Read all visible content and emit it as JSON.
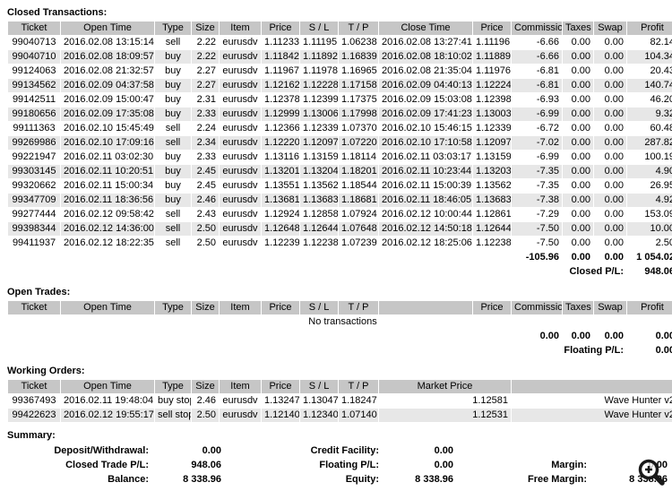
{
  "closed": {
    "title": "Closed Transactions:",
    "headers": [
      "Ticket",
      "Open Time",
      "Type",
      "Size",
      "Item",
      "Price",
      "S / L",
      "T / P",
      "Close Time",
      "Price",
      "Commission",
      "Taxes",
      "Swap",
      "Profit"
    ],
    "rows": [
      [
        "99040713",
        "2016.02.08 13:15:14",
        "sell",
        "2.22",
        "eurusdv",
        "1.11233",
        "1.11195",
        "1.06238",
        "2016.02.08 13:27:41",
        "1.11196",
        "-6.66",
        "0.00",
        "0.00",
        "82.14"
      ],
      [
        "99040710",
        "2016.02.08 18:09:57",
        "buy",
        "2.22",
        "eurusdv",
        "1.11842",
        "1.11892",
        "1.16839",
        "2016.02.08 18:10:02",
        "1.11889",
        "-6.66",
        "0.00",
        "0.00",
        "104.34"
      ],
      [
        "99124063",
        "2016.02.08 21:32:57",
        "buy",
        "2.27",
        "eurusdv",
        "1.11967",
        "1.11978",
        "1.16965",
        "2016.02.08 21:35:04",
        "1.11976",
        "-6.81",
        "0.00",
        "0.00",
        "20.43"
      ],
      [
        "99134562",
        "2016.02.09 04:37:58",
        "buy",
        "2.27",
        "eurusdv",
        "1.12162",
        "1.12228",
        "1.17158",
        "2016.02.09 04:40:13",
        "1.12224",
        "-6.81",
        "0.00",
        "0.00",
        "140.74"
      ],
      [
        "99142511",
        "2016.02.09 15:00:47",
        "buy",
        "2.31",
        "eurusdv",
        "1.12378",
        "1.12399",
        "1.17375",
        "2016.02.09 15:03:08",
        "1.12398",
        "-6.93",
        "0.00",
        "0.00",
        "46.20"
      ],
      [
        "99180656",
        "2016.02.09 17:35:08",
        "buy",
        "2.33",
        "eurusdv",
        "1.12999",
        "1.13006",
        "1.17998",
        "2016.02.09 17:41:23",
        "1.13003",
        "-6.99",
        "0.00",
        "0.00",
        "9.32"
      ],
      [
        "99111363",
        "2016.02.10 15:45:49",
        "sell",
        "2.24",
        "eurusdv",
        "1.12366",
        "1.12339",
        "1.07370",
        "2016.02.10 15:46:15",
        "1.12339",
        "-6.72",
        "0.00",
        "0.00",
        "60.48"
      ],
      [
        "99269986",
        "2016.02.10 17:09:16",
        "sell",
        "2.34",
        "eurusdv",
        "1.12220",
        "1.12097",
        "1.07220",
        "2016.02.10 17:10:58",
        "1.12097",
        "-7.02",
        "0.00",
        "0.00",
        "287.82"
      ],
      [
        "99221947",
        "2016.02.11 03:02:30",
        "buy",
        "2.33",
        "eurusdv",
        "1.13116",
        "1.13159",
        "1.18114",
        "2016.02.11 03:03:17",
        "1.13159",
        "-6.99",
        "0.00",
        "0.00",
        "100.19"
      ],
      [
        "99303145",
        "2016.02.11 10:20:51",
        "buy",
        "2.45",
        "eurusdv",
        "1.13201",
        "1.13204",
        "1.18201",
        "2016.02.11 10:23:44",
        "1.13203",
        "-7.35",
        "0.00",
        "0.00",
        "4.90"
      ],
      [
        "99320662",
        "2016.02.11 15:00:34",
        "buy",
        "2.45",
        "eurusdv",
        "1.13551",
        "1.13562",
        "1.18544",
        "2016.02.11 15:00:39",
        "1.13562",
        "-7.35",
        "0.00",
        "0.00",
        "26.95"
      ],
      [
        "99347709",
        "2016.02.11 18:36:56",
        "buy",
        "2.46",
        "eurusdv",
        "1.13681",
        "1.13683",
        "1.18681",
        "2016.02.11 18:46:05",
        "1.13683",
        "-7.38",
        "0.00",
        "0.00",
        "4.92"
      ],
      [
        "99277444",
        "2016.02.12 09:58:42",
        "sell",
        "2.43",
        "eurusdv",
        "1.12924",
        "1.12858",
        "1.07924",
        "2016.02.12 10:00:44",
        "1.12861",
        "-7.29",
        "0.00",
        "0.00",
        "153.09"
      ],
      [
        "99398344",
        "2016.02.12 14:36:00",
        "sell",
        "2.50",
        "eurusdv",
        "1.12648",
        "1.12644",
        "1.07648",
        "2016.02.12 14:50:18",
        "1.12644",
        "-7.50",
        "0.00",
        "0.00",
        "10.00"
      ],
      [
        "99411937",
        "2016.02.12 18:22:35",
        "sell",
        "2.50",
        "eurusdv",
        "1.12239",
        "1.12238",
        "1.07239",
        "2016.02.12 18:25:06",
        "1.12238",
        "-7.50",
        "0.00",
        "0.00",
        "2.50"
      ]
    ],
    "totals": [
      "-105.96",
      "0.00",
      "0.00",
      "1 054.02"
    ],
    "pl_label": "Closed P/L:",
    "pl_value": "948.06"
  },
  "open": {
    "title": "Open Trades:",
    "headers": [
      "Ticket",
      "Open Time",
      "Type",
      "Size",
      "Item",
      "Price",
      "S / L",
      "T / P",
      "",
      "Price",
      "Commission",
      "Taxes",
      "Swap",
      "Profit"
    ],
    "empty_text": "No transactions",
    "totals": [
      "0.00",
      "0.00",
      "0.00",
      "0.00"
    ],
    "pl_label": "Floating P/L:",
    "pl_value": "0.00"
  },
  "working": {
    "title": "Working Orders:",
    "headers": [
      "Ticket",
      "Open Time",
      "Type",
      "Size",
      "Item",
      "Price",
      "S / L",
      "T / P",
      "Market Price"
    ],
    "rows": [
      {
        "cells": [
          "99367493",
          "2016.02.11 19:48:04",
          "buy stop",
          "2.46",
          "eurusdv",
          "1.13247",
          "1.13047",
          "1.18247"
        ],
        "market_price": "1.12581",
        "comment": "Wave Hunter v2"
      },
      {
        "cells": [
          "99422623",
          "2016.02.12 19:55:17",
          "sell stop",
          "2.50",
          "eurusdv",
          "1.12140",
          "1.12340",
          "1.07140"
        ],
        "market_price": "1.12531",
        "comment": "Wave Hunter v2"
      }
    ]
  },
  "summary": {
    "title": "Summary:",
    "rows": [
      [
        {
          "label": "Deposit/Withdrawal:",
          "value": "0.00"
        },
        {
          "label": "Credit Facility:",
          "value": "0.00"
        },
        {
          "label": "",
          "value": ""
        }
      ],
      [
        {
          "label": "Closed Trade P/L:",
          "value": "948.06"
        },
        {
          "label": "Floating P/L:",
          "value": "0.00"
        },
        {
          "label": "Margin:",
          "value": "0.00"
        }
      ],
      [
        {
          "label": "Balance:",
          "value": "8 338.96"
        },
        {
          "label": "Equity:",
          "value": "8 338.96"
        },
        {
          "label": "Free Margin:",
          "value": "8 338.96"
        }
      ]
    ]
  },
  "icons": {
    "zoom": "zoom-in-icon"
  },
  "colors": {
    "header_bg": "#c6c6c6",
    "alt_row_bg": "#e7e7e7",
    "text": "#000000"
  }
}
